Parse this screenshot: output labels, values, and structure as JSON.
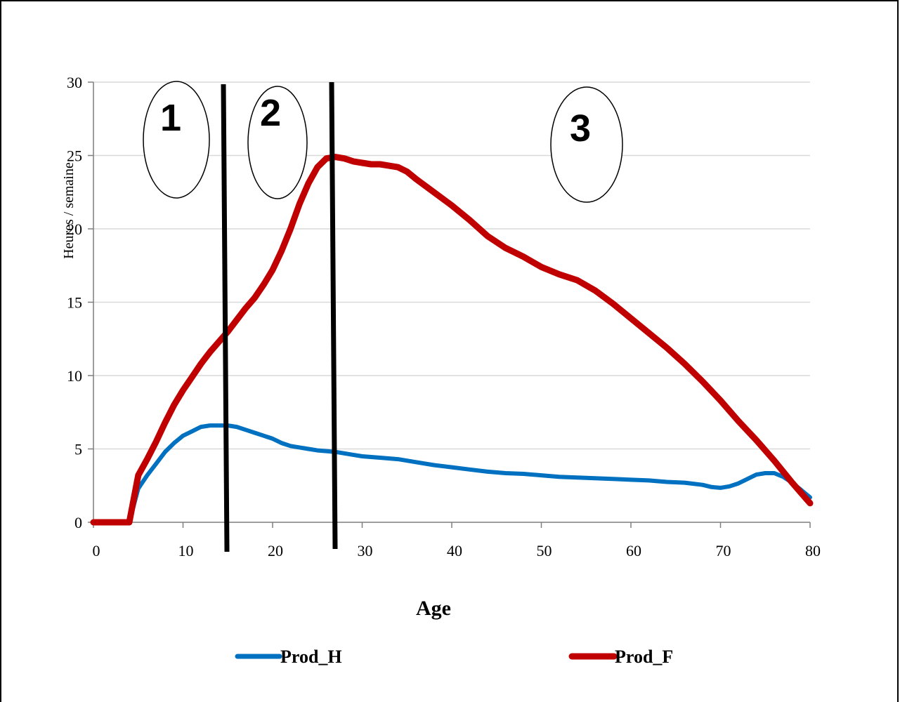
{
  "chart_data": {
    "type": "line",
    "xlabel": "Age",
    "ylabel": "Heures / semaine",
    "xlim": [
      0,
      81
    ],
    "ylim": [
      0,
      30
    ],
    "x_ticks": [
      "0",
      "10",
      "20",
      "30",
      "40",
      "50",
      "60",
      "70",
      "80"
    ],
    "y_ticks": [
      "0",
      "5",
      "10",
      "15",
      "20",
      "25",
      "30"
    ],
    "grid": "horizontal",
    "legend_position": "bottom",
    "series": [
      {
        "name": "Prod_H",
        "color": "#0070C0",
        "points": [
          [
            0,
            0
          ],
          [
            4,
            0
          ],
          [
            5,
            2.3
          ],
          [
            6,
            3.2
          ],
          [
            7,
            4
          ],
          [
            8,
            4.8
          ],
          [
            9,
            5.4
          ],
          [
            10,
            5.9
          ],
          [
            11,
            6.2
          ],
          [
            12,
            6.5
          ],
          [
            13,
            6.6
          ],
          [
            14,
            6.6
          ],
          [
            15,
            6.6
          ],
          [
            16,
            6.5
          ],
          [
            17,
            6.3
          ],
          [
            18,
            6.1
          ],
          [
            19,
            5.9
          ],
          [
            20,
            5.7
          ],
          [
            21,
            5.4
          ],
          [
            22,
            5.2
          ],
          [
            23,
            5.1
          ],
          [
            24,
            5.0
          ],
          [
            25,
            4.9
          ],
          [
            26,
            4.85
          ],
          [
            27,
            4.8
          ],
          [
            28,
            4.7
          ],
          [
            29,
            4.6
          ],
          [
            30,
            4.5
          ],
          [
            32,
            4.4
          ],
          [
            34,
            4.3
          ],
          [
            36,
            4.1
          ],
          [
            38,
            3.9
          ],
          [
            40,
            3.75
          ],
          [
            42,
            3.6
          ],
          [
            44,
            3.45
          ],
          [
            46,
            3.35
          ],
          [
            48,
            3.3
          ],
          [
            50,
            3.2
          ],
          [
            52,
            3.1
          ],
          [
            54,
            3.05
          ],
          [
            56,
            3.0
          ],
          [
            58,
            2.95
          ],
          [
            60,
            2.9
          ],
          [
            62,
            2.85
          ],
          [
            64,
            2.75
          ],
          [
            66,
            2.7
          ],
          [
            68,
            2.55
          ],
          [
            69,
            2.4
          ],
          [
            70,
            2.35
          ],
          [
            71,
            2.45
          ],
          [
            72,
            2.65
          ],
          [
            73,
            2.95
          ],
          [
            74,
            3.25
          ],
          [
            75,
            3.35
          ],
          [
            76,
            3.35
          ],
          [
            77,
            3.1
          ],
          [
            78,
            2.7
          ],
          [
            79,
            2.2
          ],
          [
            80,
            1.7
          ]
        ]
      },
      {
        "name": "Prod_F",
        "color": "#C00000",
        "points": [
          [
            0,
            0
          ],
          [
            4,
            0
          ],
          [
            5,
            3.2
          ],
          [
            6,
            4.3
          ],
          [
            7,
            5.5
          ],
          [
            8,
            6.8
          ],
          [
            9,
            8
          ],
          [
            10,
            9
          ],
          [
            11,
            9.9
          ],
          [
            12,
            10.8
          ],
          [
            13,
            11.6
          ],
          [
            14,
            12.3
          ],
          [
            15,
            13
          ],
          [
            16,
            13.8
          ],
          [
            17,
            14.6
          ],
          [
            18,
            15.3
          ],
          [
            19,
            16.2
          ],
          [
            20,
            17.2
          ],
          [
            21,
            18.5
          ],
          [
            22,
            20
          ],
          [
            23,
            21.7
          ],
          [
            24,
            23.1
          ],
          [
            25,
            24.2
          ],
          [
            26,
            24.8
          ],
          [
            27,
            24.9
          ],
          [
            28,
            24.8
          ],
          [
            29,
            24.6
          ],
          [
            30,
            24.5
          ],
          [
            31,
            24.4
          ],
          [
            32,
            24.4
          ],
          [
            33,
            24.3
          ],
          [
            34,
            24.2
          ],
          [
            35,
            23.9
          ],
          [
            36,
            23.4
          ],
          [
            38,
            22.5
          ],
          [
            40,
            21.6
          ],
          [
            42,
            20.6
          ],
          [
            44,
            19.5
          ],
          [
            46,
            18.7
          ],
          [
            48,
            18.1
          ],
          [
            50,
            17.4
          ],
          [
            52,
            16.9
          ],
          [
            54,
            16.5
          ],
          [
            56,
            15.8
          ],
          [
            58,
            14.9
          ],
          [
            60,
            13.9
          ],
          [
            62,
            12.9
          ],
          [
            64,
            11.9
          ],
          [
            66,
            10.8
          ],
          [
            68,
            9.6
          ],
          [
            70,
            8.3
          ],
          [
            72,
            6.9
          ],
          [
            74,
            5.6
          ],
          [
            76,
            4.2
          ],
          [
            78,
            2.7
          ],
          [
            80,
            1.3
          ]
        ]
      }
    ],
    "dividers": [
      15,
      27
    ],
    "zones": [
      {
        "label": "1",
        "x": 9.5,
        "y": 25
      },
      {
        "label": "2",
        "x": 21,
        "y": 25
      },
      {
        "label": "3",
        "x": 55,
        "y": 25
      }
    ]
  }
}
